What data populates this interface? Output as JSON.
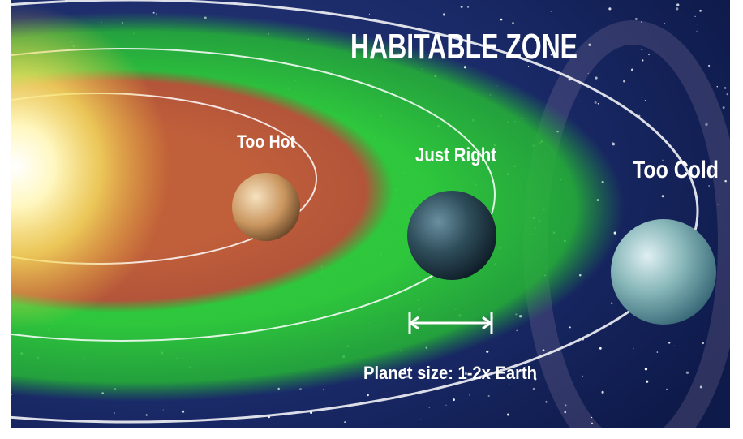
{
  "title": "HABITABLE ZONE",
  "labels": {
    "too_hot": "Too Hot",
    "just_right": "Just Right",
    "too_cold": "Too Cold"
  },
  "caption": "Planet size: 1-2x Earth"
}
